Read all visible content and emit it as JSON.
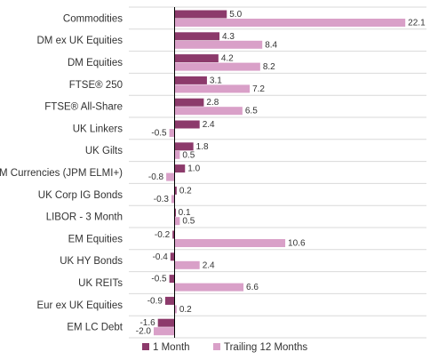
{
  "chart_data": {
    "type": "bar",
    "orientation": "horizontal",
    "categories": [
      "Commodities",
      "DM ex UK Equities",
      "DM Equities",
      "FTSE® 250",
      "FTSE® All-Share",
      "UK Linkers",
      "UK Gilts",
      "EM Currencies (JPM ELMI+)",
      "UK Corp IG Bonds",
      "LIBOR - 3 Month",
      "EM Equities",
      "UK HY Bonds",
      "UK REITs",
      "Eur ex UK Equities",
      "EM LC Debt"
    ],
    "series": [
      {
        "name": "1 Month",
        "color": "#8c3a6b",
        "values": [
          5.0,
          4.3,
          4.2,
          3.1,
          2.8,
          2.4,
          1.8,
          1.0,
          0.2,
          0.1,
          -0.2,
          -0.4,
          -0.5,
          -0.9,
          -1.6
        ]
      },
      {
        "name": "Trailing 12 Months",
        "color": "#d9a0c8",
        "values": [
          22.1,
          8.4,
          8.2,
          7.2,
          6.5,
          -0.5,
          0.5,
          -0.8,
          -0.3,
          0.5,
          10.6,
          2.4,
          6.6,
          0.2,
          -2.0
        ]
      }
    ],
    "value_labels": [
      [
        "5.0",
        "22.1"
      ],
      [
        "4.3",
        "8.4"
      ],
      [
        "4.2",
        "8.2"
      ],
      [
        "3.1",
        "7.2"
      ],
      [
        "2.8",
        "6.5"
      ],
      [
        "2.4",
        "-0.5"
      ],
      [
        "1.8",
        "0.5"
      ],
      [
        "1.0",
        "-0.8"
      ],
      [
        "0.2",
        "-0.3"
      ],
      [
        "0.1",
        "0.5"
      ],
      [
        "-0.2",
        "10.6"
      ],
      [
        "-0.4",
        "2.4"
      ],
      [
        "-0.5",
        "6.6"
      ],
      [
        "-0.9",
        "0.2"
      ],
      [
        "-1.6",
        "-2.0"
      ]
    ],
    "xlim": [
      -2.5,
      22.5
    ],
    "grid": "horizontal separators",
    "legend": "bottom"
  }
}
